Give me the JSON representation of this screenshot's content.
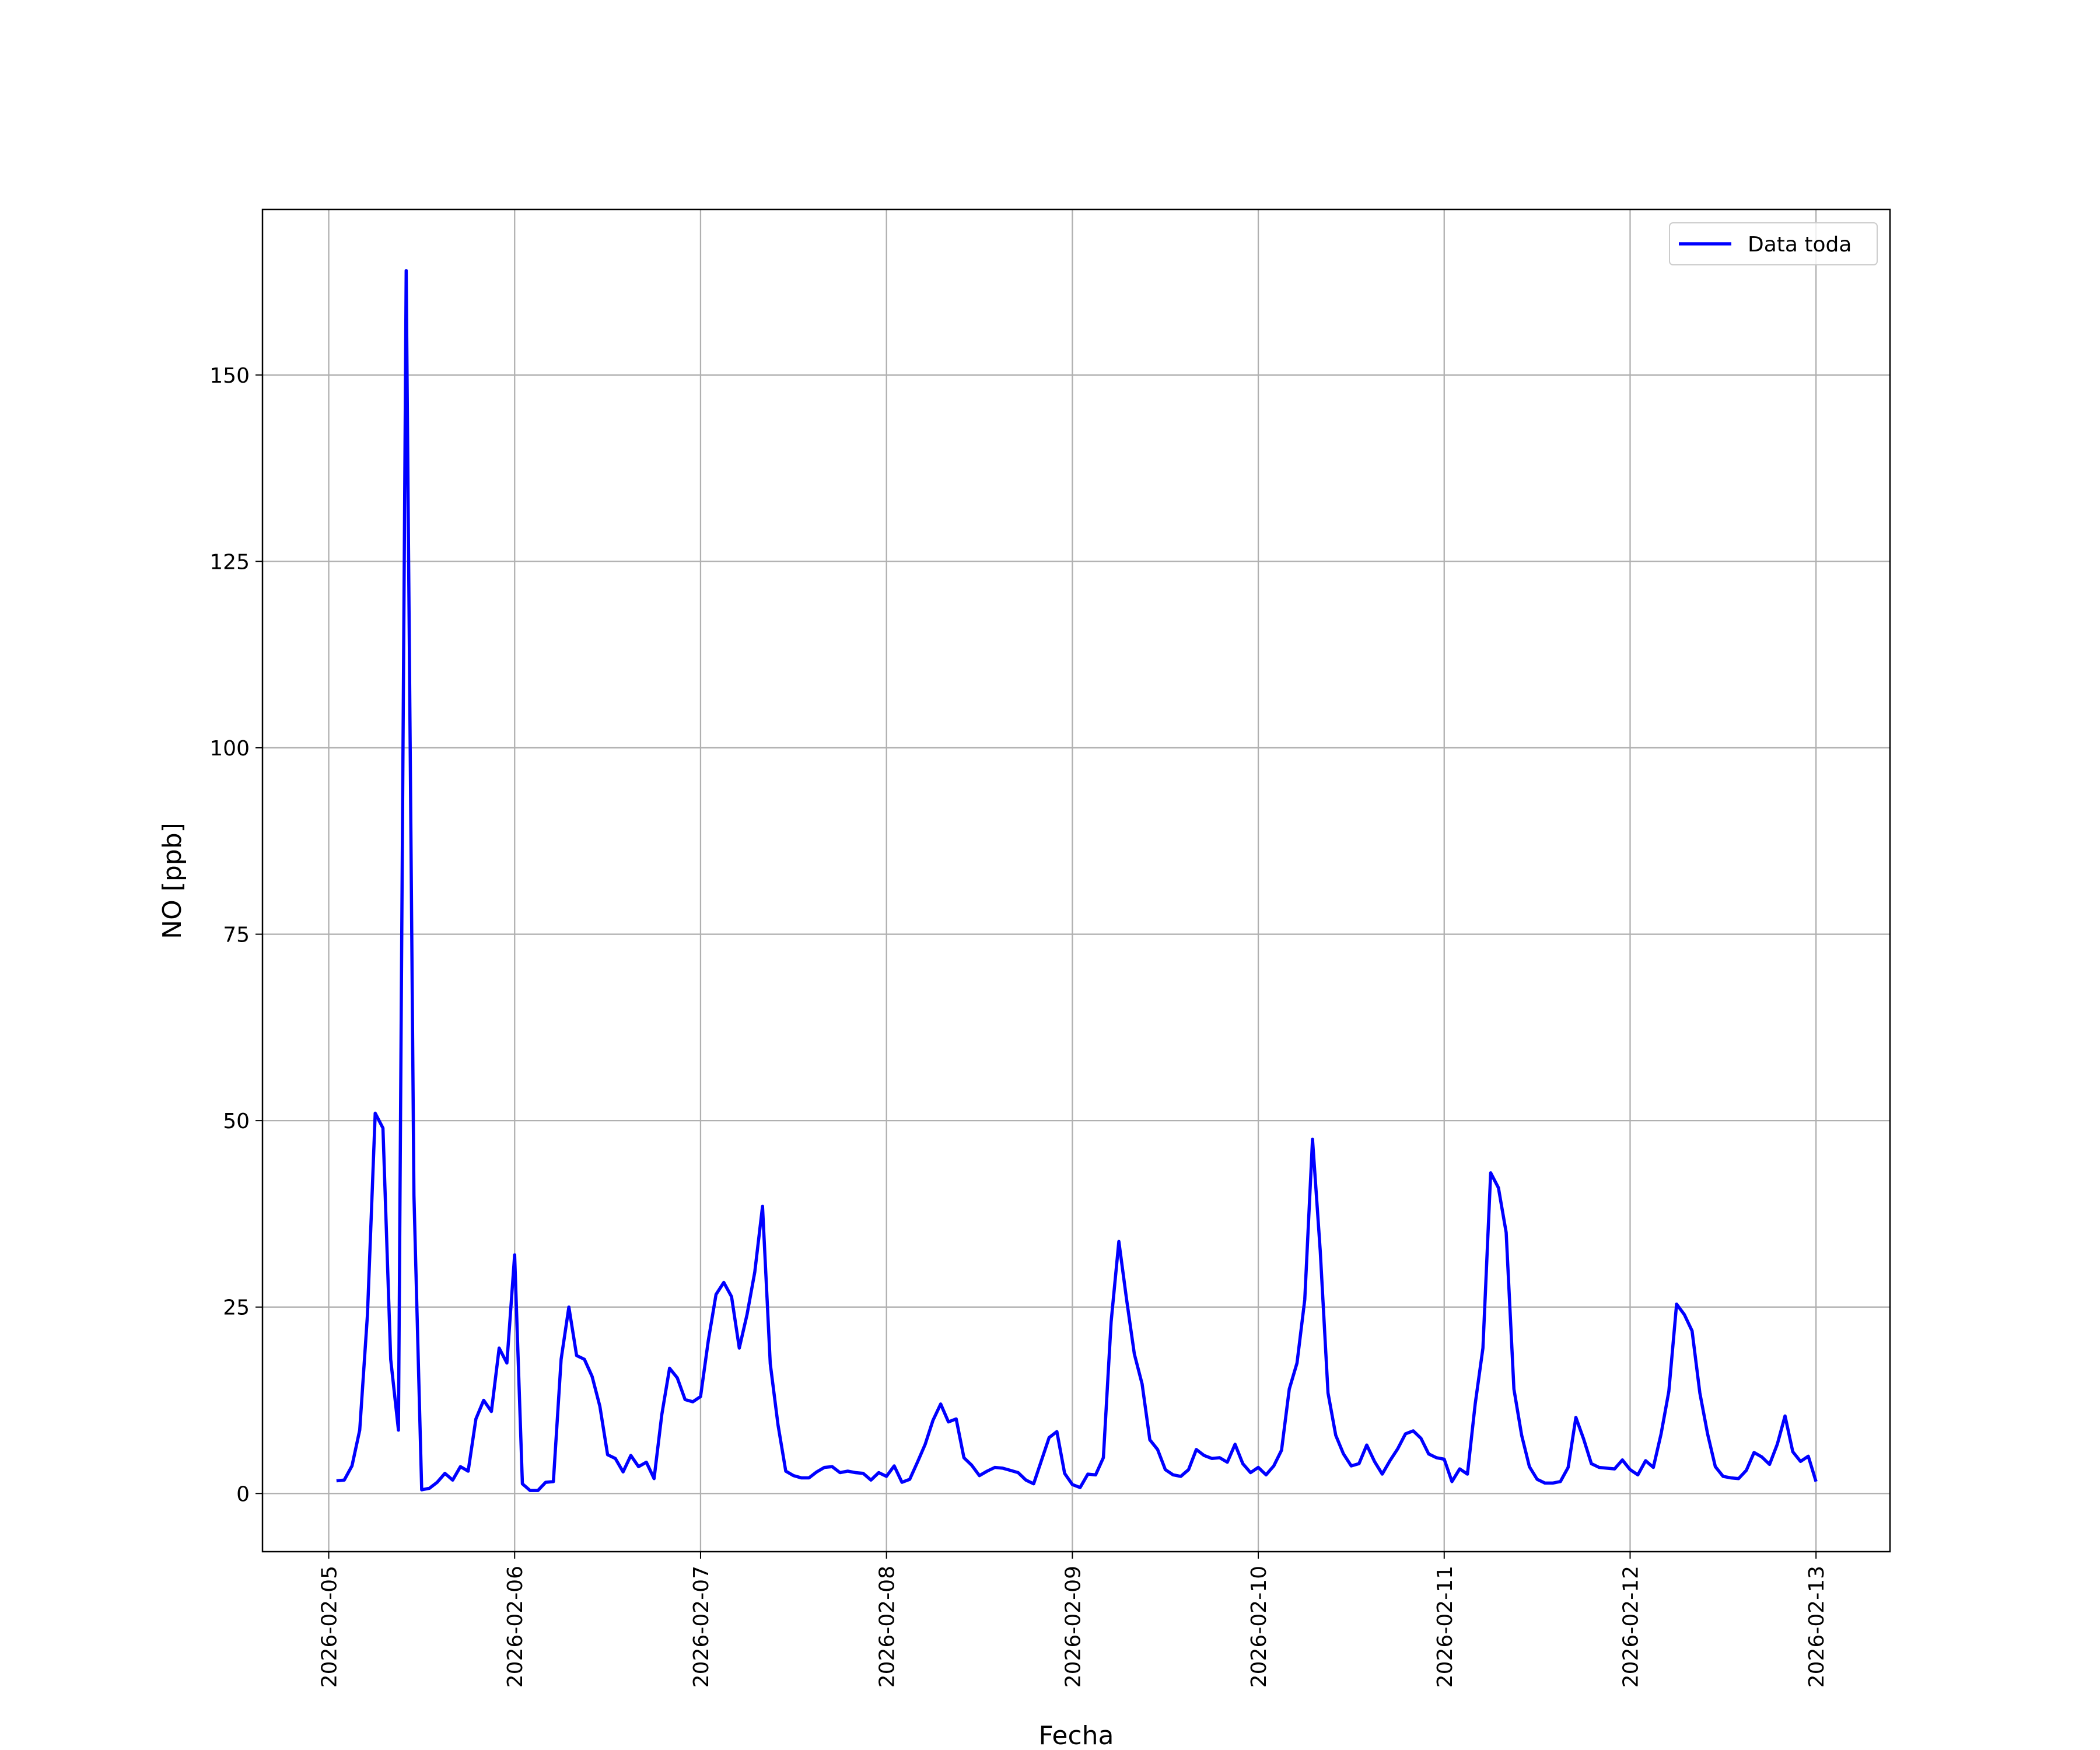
{
  "chart_data": {
    "type": "line",
    "xlabel": "Fecha",
    "ylabel": "NO [ppb]",
    "xlim": [
      "2026-02-04 15:27",
      "2026-02-13 09:33"
    ],
    "xticks": [
      "2026-02-05",
      "2026-02-06",
      "2026-02-07",
      "2026-02-08",
      "2026-02-09",
      "2026-02-10",
      "2026-02-11",
      "2026-02-12",
      "2026-02-13"
    ],
    "ylim": [
      -7.8,
      172.2
    ],
    "yticks": [
      0,
      25,
      50,
      75,
      100,
      125,
      150
    ],
    "grid": true,
    "legend": "upper right",
    "x": [
      "2026-02-05 01:00",
      "2026-02-05 02:00",
      "2026-02-05 03:00",
      "2026-02-05 04:00",
      "2026-02-05 05:00",
      "2026-02-05 06:00",
      "2026-02-05 07:00",
      "2026-02-05 08:00",
      "2026-02-05 09:00",
      "2026-02-05 10:00",
      "2026-02-05 11:00",
      "2026-02-05 12:00",
      "2026-02-05 13:00",
      "2026-02-05 14:00",
      "2026-02-05 15:00",
      "2026-02-05 16:00",
      "2026-02-05 17:00",
      "2026-02-05 18:00",
      "2026-02-05 19:00",
      "2026-02-05 20:00",
      "2026-02-05 21:00",
      "2026-02-05 22:00",
      "2026-02-05 23:00",
      "2026-02-06 00:00",
      "2026-02-06 01:00",
      "2026-02-06 02:00",
      "2026-02-06 03:00",
      "2026-02-06 04:00",
      "2026-02-06 05:00",
      "2026-02-06 06:00",
      "2026-02-06 07:00",
      "2026-02-06 08:00",
      "2026-02-06 09:00",
      "2026-02-06 10:00",
      "2026-02-06 11:00",
      "2026-02-06 12:00",
      "2026-02-06 13:00",
      "2026-02-06 14:00",
      "2026-02-06 15:00",
      "2026-02-06 16:00",
      "2026-02-06 17:00",
      "2026-02-06 18:00",
      "2026-02-06 19:00",
      "2026-02-06 20:00",
      "2026-02-06 21:00",
      "2026-02-06 22:00",
      "2026-02-06 23:00",
      "2026-02-07 00:00",
      "2026-02-07 01:00",
      "2026-02-07 02:00",
      "2026-02-07 03:00",
      "2026-02-07 04:00",
      "2026-02-07 05:00",
      "2026-02-07 06:00",
      "2026-02-07 07:00",
      "2026-02-07 08:00",
      "2026-02-07 09:00",
      "2026-02-07 10:00",
      "2026-02-07 11:00",
      "2026-02-07 12:00",
      "2026-02-07 13:00",
      "2026-02-07 14:00",
      "2026-02-07 15:00",
      "2026-02-07 16:00",
      "2026-02-07 17:00",
      "2026-02-07 18:00",
      "2026-02-07 19:00",
      "2026-02-07 20:00",
      "2026-02-07 21:00",
      "2026-02-07 22:00",
      "2026-02-07 23:00",
      "2026-02-08 00:00",
      "2026-02-08 01:00",
      "2026-02-08 02:00",
      "2026-02-08 03:00",
      "2026-02-08 04:00",
      "2026-02-08 05:00",
      "2026-02-08 06:00",
      "2026-02-08 07:00",
      "2026-02-08 08:00",
      "2026-02-08 09:00",
      "2026-02-08 10:00",
      "2026-02-08 11:00",
      "2026-02-08 12:00",
      "2026-02-08 13:00",
      "2026-02-08 14:00",
      "2026-02-08 15:00",
      "2026-02-08 16:00",
      "2026-02-08 17:00",
      "2026-02-08 18:00",
      "2026-02-08 19:00",
      "2026-02-08 20:00",
      "2026-02-08 21:00",
      "2026-02-08 22:00",
      "2026-02-08 23:00",
      "2026-02-09 00:00",
      "2026-02-09 01:00",
      "2026-02-09 02:00",
      "2026-02-09 03:00",
      "2026-02-09 04:00",
      "2026-02-09 05:00",
      "2026-02-09 06:00",
      "2026-02-09 07:00",
      "2026-02-09 08:00",
      "2026-02-09 09:00",
      "2026-02-09 10:00",
      "2026-02-09 11:00",
      "2026-02-09 12:00",
      "2026-02-09 13:00",
      "2026-02-09 14:00",
      "2026-02-09 15:00",
      "2026-02-09 16:00",
      "2026-02-09 17:00",
      "2026-02-09 18:00",
      "2026-02-09 19:00",
      "2026-02-09 20:00",
      "2026-02-09 21:00",
      "2026-02-09 22:00",
      "2026-02-09 23:00",
      "2026-02-10 00:00",
      "2026-02-10 01:00",
      "2026-02-10 02:00",
      "2026-02-10 03:00",
      "2026-02-10 04:00",
      "2026-02-10 05:00",
      "2026-02-10 06:00",
      "2026-02-10 07:00",
      "2026-02-10 08:00",
      "2026-02-10 09:00",
      "2026-02-10 10:00",
      "2026-02-10 11:00",
      "2026-02-10 12:00",
      "2026-02-10 13:00",
      "2026-02-10 14:00",
      "2026-02-10 15:00",
      "2026-02-10 16:00",
      "2026-02-10 17:00",
      "2026-02-10 18:00",
      "2026-02-10 19:00",
      "2026-02-10 20:00",
      "2026-02-10 21:00",
      "2026-02-10 22:00",
      "2026-02-10 23:00",
      "2026-02-11 00:00",
      "2026-02-11 01:00",
      "2026-02-11 02:00",
      "2026-02-11 03:00",
      "2026-02-11 04:00",
      "2026-02-11 05:00",
      "2026-02-11 06:00",
      "2026-02-11 07:00",
      "2026-02-11 08:00",
      "2026-02-11 09:00",
      "2026-02-11 10:00",
      "2026-02-11 11:00",
      "2026-02-11 12:00",
      "2026-02-11 13:00",
      "2026-02-11 14:00",
      "2026-02-11 15:00",
      "2026-02-11 16:00",
      "2026-02-11 17:00",
      "2026-02-11 18:00",
      "2026-02-11 19:00",
      "2026-02-11 20:00",
      "2026-02-11 21:00",
      "2026-02-11 22:00",
      "2026-02-11 23:00",
      "2026-02-12 00:00",
      "2026-02-12 01:00",
      "2026-02-12 02:00",
      "2026-02-12 03:00",
      "2026-02-12 04:00",
      "2026-02-12 05:00",
      "2026-02-12 06:00",
      "2026-02-12 07:00",
      "2026-02-12 08:00",
      "2026-02-12 09:00",
      "2026-02-12 10:00",
      "2026-02-12 11:00",
      "2026-02-12 12:00",
      "2026-02-12 13:00",
      "2026-02-12 14:00",
      "2026-02-12 15:00",
      "2026-02-12 16:00",
      "2026-02-12 17:00",
      "2026-02-12 18:00",
      "2026-02-12 19:00",
      "2026-02-12 20:00",
      "2026-02-12 21:00",
      "2026-02-12 22:00",
      "2026-02-12 23:00",
      "2026-02-13 00:00"
    ],
    "series": [
      {
        "name": "Data toda",
        "color": "#0000ff",
        "values": [
          1.7,
          1.8,
          3.7,
          8.5,
          24,
          51,
          49,
          18,
          8.5,
          164,
          40,
          0.5,
          0.7,
          1.5,
          2.7,
          1.8,
          3.6,
          3,
          10,
          12.5,
          11,
          19.5,
          17.5,
          32,
          1.3,
          0.4,
          0.4,
          1.5,
          1.6,
          18,
          25,
          18.5,
          18,
          15.7,
          11.7,
          5.2,
          4.7,
          2.9,
          5.1,
          3.6,
          4.2,
          2,
          10.6,
          16.8,
          15.5,
          12.6,
          12.3,
          13,
          20.5,
          26.7,
          28.3,
          26.4,
          19.5,
          24,
          29.7,
          38.5,
          17.4,
          9.2,
          3,
          2.4,
          2.1,
          2.1,
          2.9,
          3.5,
          3.6,
          2.8,
          3,
          2.8,
          2.7,
          1.8,
          2.8,
          2.3,
          3.7,
          1.5,
          1.9,
          4.2,
          6.6,
          9.8,
          12,
          9.6,
          10,
          4.8,
          3.8,
          2.4,
          3,
          3.5,
          3.4,
          3.1,
          2.8,
          1.8,
          1.3,
          4.4,
          7.5,
          8.3,
          2.7,
          1.2,
          0.8,
          2.6,
          2.5,
          4.8,
          23,
          33.8,
          26,
          18.7,
          14.7,
          7.2,
          5.9,
          3.2,
          2.5,
          2.3,
          3.2,
          5.9,
          5.1,
          4.7,
          4.8,
          4.2,
          6.6,
          4,
          2.8,
          3.5,
          2.5,
          3.7,
          5.8,
          14,
          17.5,
          26,
          47.5,
          32.5,
          13.5,
          7.8,
          5.3,
          3.7,
          4,
          6.5,
          4.3,
          2.6,
          4.4,
          6,
          8,
          8.4,
          7.4,
          5.3,
          4.8,
          4.6,
          1.6,
          3.3,
          2.6,
          12,
          19.5,
          43,
          41,
          35,
          14,
          7.8,
          3.6,
          1.9,
          1.4,
          1.4,
          1.6,
          3.5,
          10.2,
          7.3,
          4,
          3.5,
          3.4,
          3.3,
          4.5,
          3.2,
          2.5,
          4.4,
          3.5,
          8,
          13.7,
          25.4,
          24,
          21.8,
          13.5,
          8,
          3.6,
          2.3,
          2.1,
          2,
          3.1,
          5.5,
          4.9,
          3.9,
          6.6,
          10.4,
          5.6,
          4.3,
          5,
          1.6
        ]
      }
    ]
  }
}
